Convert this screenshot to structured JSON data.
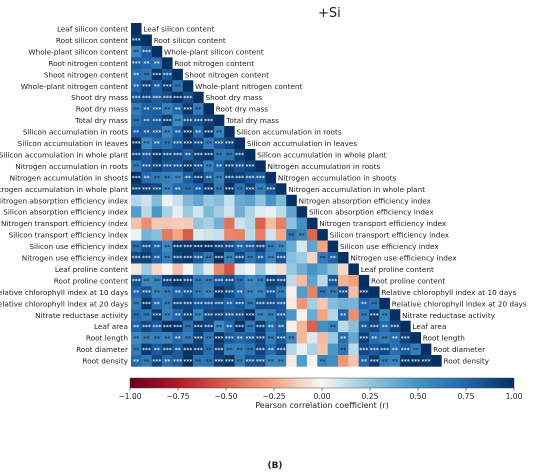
{
  "figure_label": "(B)",
  "chart_data": {
    "type": "heatmap",
    "title": "+Si",
    "variables": [
      "Leaf silicon content",
      "Root silicon content",
      "Whole-plant silicon content",
      "Root nitrogen content",
      "Shoot nitrogen content",
      "Whole-plant nitrogen content",
      "Shoot dry mass",
      "Root dry mass",
      "Total dry mass",
      "Silicon accumulation in roots",
      "Silicon accumulation in leaves",
      "Silicon accumulation in whole plant",
      "Nitrogen accumulation in roots",
      "Nitrogen accumulation in shoots",
      "Nitrogen accumulation in whole plant",
      "Nitrogen absorption efficiency index",
      "Silicon absorption efficiency index",
      "Nitrogen transport efficiency index",
      "Silicon transport efficiency index",
      "Silicon use efficiency index",
      "Nitrogen use efficiency index",
      "Leaf proline content",
      "Root proline content",
      "Relative chlorophyll index at 10 days",
      "Relative chlorophyll index at 20 days",
      "Nitrate reductase activity",
      "Leaf area",
      "Root length",
      "Root diameter",
      "Root density"
    ],
    "layout": "lower-triangle",
    "colorbar": {
      "label": "Pearson correlation coefficient (r)",
      "min": -1.0,
      "max": 1.0,
      "ticks": [
        "-1.00",
        "-0.75",
        "-0.50",
        "-0.25",
        "0.00",
        "0.25",
        "0.50",
        "0.75",
        "1.00"
      ],
      "colormap": "RdBu"
    },
    "significance_marker": "*"
  }
}
